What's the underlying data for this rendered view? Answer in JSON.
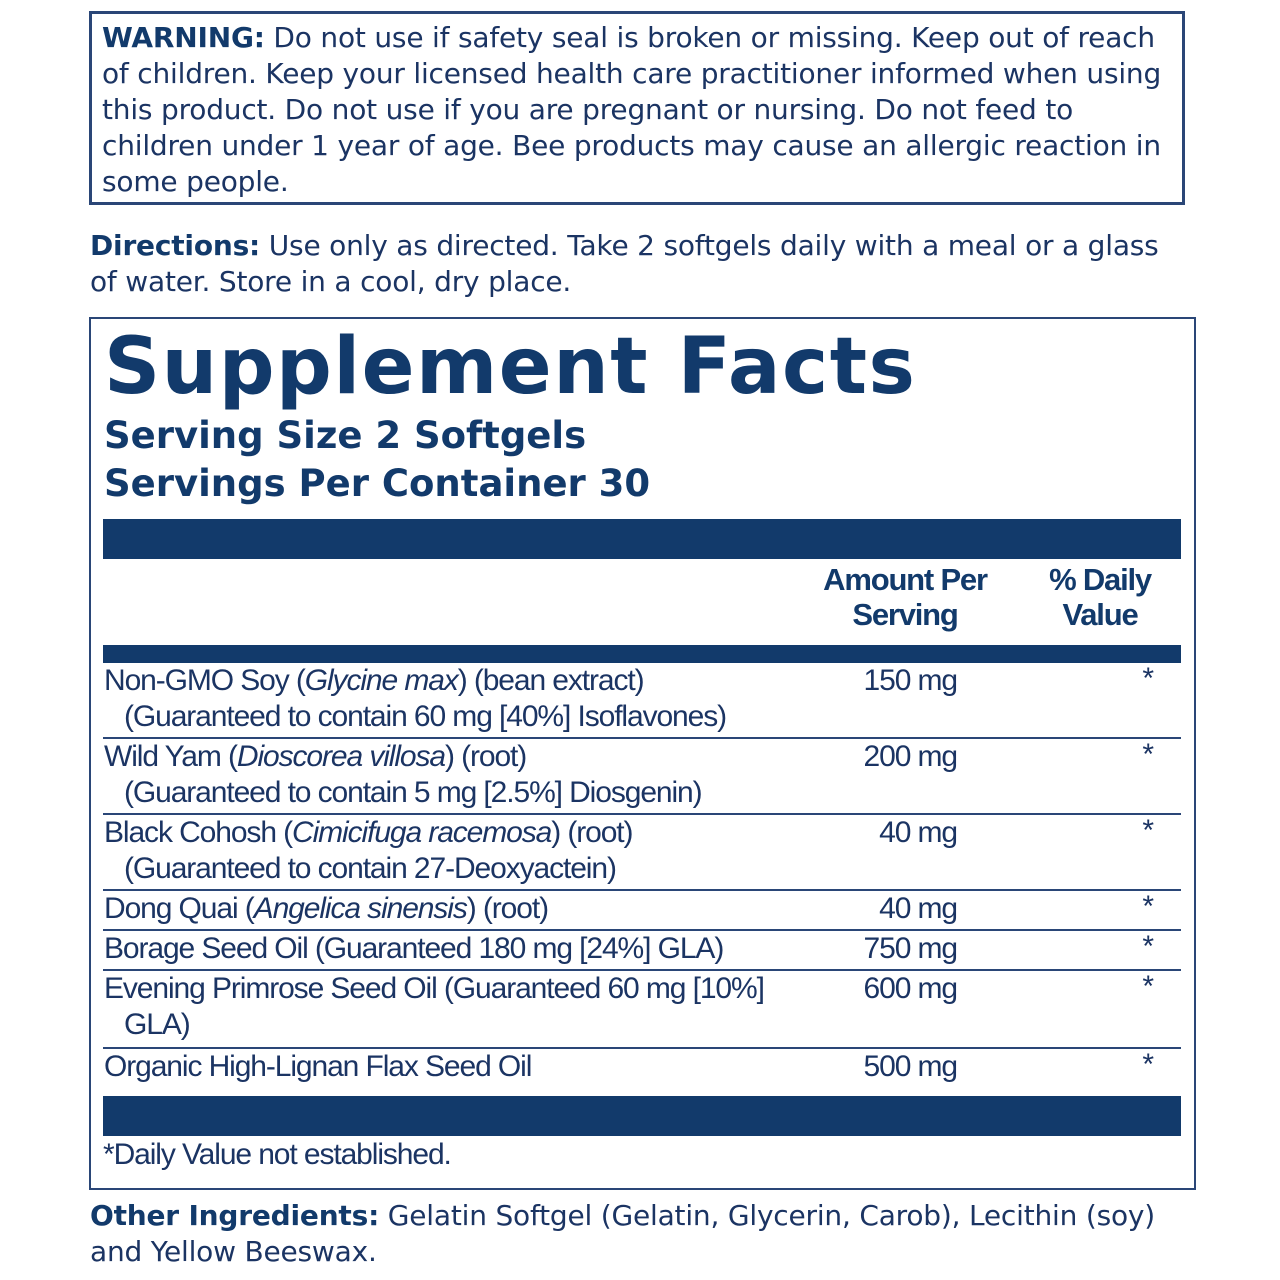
{
  "warning": {
    "label": "WARNING:",
    "text": " Do not use if safety seal is broken or missing. Keep out of reach of children. Keep your licensed health care practitioner informed when using this product. Do not use if you are pregnant or nursing. Do not feed to children under 1 year of age. Bee products may cause an allergic reaction in some people."
  },
  "directions": {
    "label": "Directions:",
    "text": " Use only as directed. Take 2 softgels daily with a meal or a glass of water. Store in a cool, dry place."
  },
  "facts": {
    "title": "Supplement Facts",
    "serving_size": "Serving Size 2 Softgels",
    "servings_per_container": "Servings Per Container 30",
    "col_amount": "Amount Per Serving",
    "col_dv": "% Daily Value",
    "rows": [
      {
        "pre": "Non-GMO Soy (",
        "italic": "Glycine max",
        "post": ") (bean extract)",
        "sub": "(Guaranteed to contain 60 mg [40%] Isoflavones)",
        "amount": "150 mg",
        "dv": "*"
      },
      {
        "pre": "Wild Yam (",
        "italic": "Dioscorea villosa",
        "post": ") (root)",
        "sub": "(Guaranteed to contain 5 mg [2.5%] Diosgenin)",
        "amount": "200 mg",
        "dv": "*"
      },
      {
        "pre": "Black Cohosh (",
        "italic": "Cimicifuga racemosa",
        "post": ") (root)",
        "sub": "(Guaranteed to contain 27-Deoxyactein)",
        "amount": "40 mg",
        "dv": "*"
      },
      {
        "pre": "Dong Quai (",
        "italic": "Angelica sinensis",
        "post": ") (root)",
        "sub": "",
        "amount": "40 mg",
        "dv": "*"
      },
      {
        "pre": "Borage Seed Oil (Guaranteed 180 mg [24%] GLA)",
        "italic": "",
        "post": "",
        "sub": "",
        "amount": "750 mg",
        "dv": "*"
      },
      {
        "pre": "Evening Primrose Seed Oil (Guaranteed 60 mg [10%]",
        "italic": "",
        "post": "",
        "sub": "GLA)",
        "amount": "600 mg",
        "dv": "*"
      },
      {
        "pre": "Organic High-Lignan Flax Seed Oil",
        "italic": "",
        "post": "",
        "sub": "",
        "amount": "500 mg",
        "dv": "*"
      }
    ],
    "footnote": "*Daily Value not established."
  },
  "other_ingredients": {
    "label": "Other Ingredients:",
    "text": " Gelatin Softgel (Gelatin, Glycerin, Carob), Lecithin (soy) and Yellow Beeswax."
  },
  "colors": {
    "navy": "#123a6b",
    "text": "#1b3463"
  }
}
